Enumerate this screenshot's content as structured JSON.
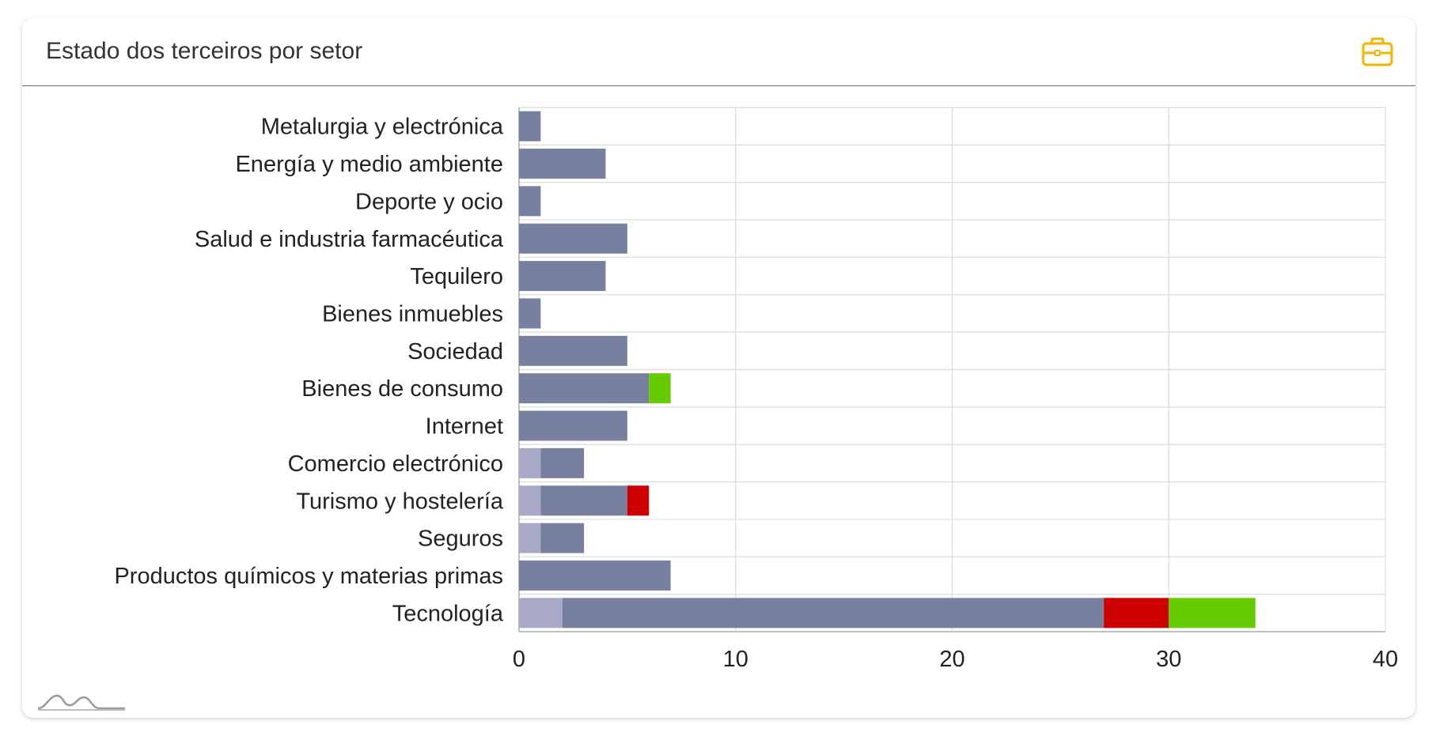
{
  "card": {
    "title": "Estado dos terceiros por setor",
    "header_icon": "briefcase-icon",
    "header_icon_color": "#f5b400",
    "footer_logo": "mountain-logo-icon"
  },
  "chart_data": {
    "type": "bar",
    "orientation": "horizontal",
    "stacked": true,
    "categories": [
      "Metalurgia y electrónica",
      "Energía y medio ambiente",
      "Deporte y ocio",
      "Salud e industria farmacéutica",
      "Tequilero",
      "Bienes inmuebles",
      "Sociedad",
      "Bienes de consumo",
      "Internet",
      "Comercio electrónico",
      "Turismo y hostelería",
      "Seguros",
      "Productos químicos y materias primas",
      "Tecnología"
    ],
    "series": [
      {
        "color": "#a7a9c6",
        "values": [
          0,
          0,
          0,
          0,
          0,
          0,
          0,
          0,
          0,
          1,
          1,
          1,
          0,
          2
        ]
      },
      {
        "color": "#7880a0",
        "values": [
          1,
          4,
          1,
          5,
          4,
          1,
          5,
          6,
          5,
          2,
          4,
          2,
          7,
          25
        ]
      },
      {
        "color": "#cc0000",
        "values": [
          0,
          0,
          0,
          0,
          0,
          0,
          0,
          0,
          0,
          0,
          1,
          0,
          0,
          3
        ]
      },
      {
        "color": "#66cc00",
        "values": [
          0,
          0,
          0,
          0,
          0,
          0,
          0,
          1,
          0,
          0,
          0,
          0,
          0,
          4
        ]
      }
    ],
    "xlim": [
      0,
      40
    ],
    "xticks": [
      0,
      10,
      20,
      30,
      40
    ],
    "grid": true
  }
}
